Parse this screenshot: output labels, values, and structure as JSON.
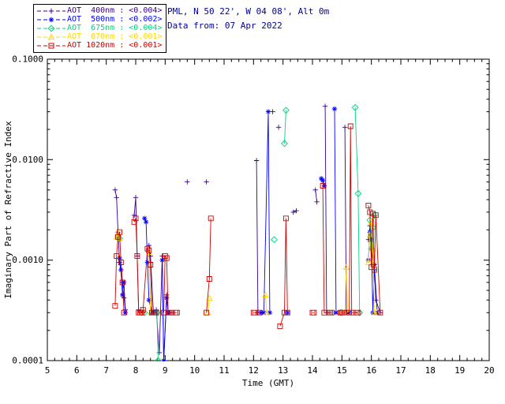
{
  "header": {
    "location_line": "PML, N 50 22', W 04 08', Alt 0m",
    "date_line": "Data from: 07 Apr 2022",
    "text_color": "#000099"
  },
  "legend": {
    "entries": [
      {
        "label": "AOT  400nm : <0.004>",
        "color": "#38008c",
        "marker": "plus"
      },
      {
        "label": "AOT  500nm : <0.002>",
        "color": "#0000ff",
        "marker": "asterisk"
      },
      {
        "label": "AOT  675nm : <0.004>",
        "color": "#00d67e",
        "marker": "diamond"
      },
      {
        "label": "AOT  870nm : <0.001>",
        "color": "#ffd800",
        "marker": "triangle"
      },
      {
        "label": "AOT 1020nm : <0.001>",
        "color": "#cc0000",
        "marker": "square"
      }
    ]
  },
  "chart_data": {
    "type": "line",
    "title": "",
    "xlabel": "Time (GMT)",
    "ylabel": "Imaginary Part of Refractive Index",
    "xlim": [
      5,
      20
    ],
    "ylim": [
      0.0001,
      0.1
    ],
    "yscale": "log",
    "grid": false,
    "legend_position": "top-left",
    "xticks": [
      5,
      6,
      7,
      8,
      9,
      10,
      11,
      12,
      13,
      14,
      15,
      16,
      17,
      18,
      19,
      20
    ],
    "yticks": [
      0.0001,
      0.001,
      0.01,
      0.1
    ],
    "ytick_labels": [
      "0.0001",
      "0.0010",
      "0.0100",
      "0.1000"
    ],
    "series": [
      {
        "name": "AOT 400nm",
        "wavelength_nm": 400,
        "color": "#38008c",
        "marker": "plus",
        "points": [
          [
            7.3,
            0.005
          ],
          [
            7.35,
            0.0042
          ],
          [
            7.4,
            0.0019
          ],
          [
            7.45,
            0.00095
          ],
          [
            7.55,
            0.0006
          ],
          [
            7.6,
            0.00042
          ],
          [
            7.65,
            0.00032
          ],
          [
            7.95,
            0.0028
          ],
          [
            8.0,
            0.0042
          ],
          [
            8.05,
            0.0011
          ],
          [
            8.1,
            0.00032
          ],
          [
            8.25,
            0.0003
          ],
          [
            8.45,
            0.0014
          ],
          [
            8.5,
            0.0011
          ],
          [
            8.6,
            0.0003
          ],
          [
            8.7,
            0.00032
          ],
          [
            8.8,
            0.00012
          ],
          [
            8.9,
            0.0011
          ],
          [
            8.95,
            0.0001
          ],
          [
            9.05,
            0.00045
          ],
          [
            9.1,
            0.0003
          ],
          [
            9.15,
            0.0003
          ],
          [
            9.75,
            0.006
          ],
          [
            10.4,
            0.006
          ],
          [
            12.1,
            0.0098
          ],
          [
            12.15,
            0.0003
          ],
          [
            12.3,
            0.0003
          ],
          [
            12.65,
            0.03
          ],
          [
            12.85,
            0.021
          ],
          [
            13.35,
            0.003
          ],
          [
            13.45,
            0.0031
          ],
          [
            14.1,
            0.005
          ],
          [
            14.15,
            0.0038
          ],
          [
            14.43,
            0.034
          ],
          [
            14.48,
            0.0003
          ],
          [
            15.1,
            0.021
          ],
          [
            15.15,
            0.0003
          ],
          [
            15.9,
            0.0016
          ],
          [
            15.95,
            0.0022
          ],
          [
            16.0,
            0.0013
          ],
          [
            16.1,
            0.0008
          ],
          [
            16.15,
            0.0004
          ],
          [
            16.3,
            0.0003
          ]
        ]
      },
      {
        "name": "AOT 500nm",
        "wavelength_nm": 500,
        "color": "#0000ff",
        "marker": "asterisk",
        "points": [
          [
            7.45,
            0.00105
          ],
          [
            7.5,
            0.0008
          ],
          [
            7.55,
            0.00045
          ],
          [
            7.6,
            0.0006
          ],
          [
            7.65,
            0.0003
          ],
          [
            8.3,
            0.0026
          ],
          [
            8.35,
            0.0024
          ],
          [
            8.4,
            0.00095
          ],
          [
            8.45,
            0.0004
          ],
          [
            8.55,
            0.0003
          ],
          [
            8.9,
            0.001
          ],
          [
            8.95,
            0.0001
          ],
          [
            9.05,
            0.00042
          ],
          [
            9.1,
            0.0003
          ],
          [
            12.25,
            0.0003
          ],
          [
            12.35,
            0.0003
          ],
          [
            12.5,
            0.03
          ],
          [
            12.55,
            0.0003
          ],
          [
            13.15,
            0.0003
          ],
          [
            14.3,
            0.0065
          ],
          [
            14.35,
            0.0062
          ],
          [
            14.4,
            0.0055
          ],
          [
            14.75,
            0.032
          ],
          [
            14.8,
            0.0003
          ],
          [
            15.2,
            0.0003
          ],
          [
            15.25,
            0.0003
          ],
          [
            15.9,
            0.001
          ],
          [
            15.95,
            0.0019
          ],
          [
            16.0,
            0.0016
          ],
          [
            16.05,
            0.0003
          ],
          [
            16.1,
            0.0009
          ],
          [
            16.2,
            0.0003
          ]
        ]
      },
      {
        "name": "AOT 675nm",
        "wavelength_nm": 675,
        "color": "#00d67e",
        "marker": "diamond",
        "points": [
          [
            7.4,
            0.00175
          ],
          [
            7.45,
            0.00165
          ],
          [
            8.2,
            0.0003
          ],
          [
            8.3,
            0.0003
          ],
          [
            8.72,
            0.0003
          ],
          [
            8.76,
            0.0001
          ],
          [
            12.7,
            0.0016
          ],
          [
            13.05,
            0.0145
          ],
          [
            13.1,
            0.031
          ],
          [
            14.95,
            0.0003
          ],
          [
            15.0,
            0.0003
          ],
          [
            15.45,
            0.033
          ],
          [
            15.55,
            0.0046
          ],
          [
            15.6,
            0.0003
          ],
          [
            15.95,
            0.0025
          ],
          [
            16.0,
            0.0013
          ],
          [
            16.05,
            0.0021
          ],
          [
            16.1,
            0.0028
          ]
        ]
      },
      {
        "name": "AOT 870nm",
        "wavelength_nm": 870,
        "color": "#ffd800",
        "marker": "triangle",
        "points": [
          [
            7.35,
            0.0017
          ],
          [
            7.4,
            0.00185
          ],
          [
            7.45,
            0.00165
          ],
          [
            8.2,
            0.0003
          ],
          [
            8.45,
            0.0012
          ],
          [
            8.5,
            0.0003
          ],
          [
            10.45,
            0.0003
          ],
          [
            10.5,
            0.00042
          ],
          [
            12.4,
            0.00045
          ],
          [
            12.45,
            0.0003
          ],
          [
            15.1,
            0.0003
          ],
          [
            15.15,
            0.00085
          ],
          [
            15.2,
            0.0003
          ],
          [
            15.9,
            0.00095
          ],
          [
            15.95,
            0.0018
          ],
          [
            16.0,
            0.0024
          ],
          [
            16.05,
            0.0013
          ],
          [
            16.1,
            0.0003
          ],
          [
            16.2,
            0.0003
          ]
        ]
      },
      {
        "name": "AOT 1020nm",
        "wavelength_nm": 1020,
        "color": "#cc0000",
        "marker": "square",
        "points": [
          [
            7.3,
            0.00035
          ],
          [
            7.35,
            0.0011
          ],
          [
            7.4,
            0.0017
          ],
          [
            7.45,
            0.0019
          ],
          [
            7.5,
            0.00095
          ],
          [
            7.55,
            0.0006
          ],
          [
            7.6,
            0.0003
          ],
          [
            7.95,
            0.0024
          ],
          [
            8.0,
            0.0026
          ],
          [
            8.05,
            0.0011
          ],
          [
            8.1,
            0.0003
          ],
          [
            8.15,
            0.0003
          ],
          [
            8.2,
            0.0003
          ],
          [
            8.25,
            0.00032
          ],
          [
            8.4,
            0.0013
          ],
          [
            8.45,
            0.00125
          ],
          [
            8.5,
            0.0009
          ],
          [
            8.55,
            0.0003
          ],
          [
            8.6,
            0.0003
          ],
          [
            8.65,
            0.0003
          ],
          [
            8.7,
            0.0003
          ],
          [
            8.95,
            0.0003
          ],
          [
            9.0,
            0.0011
          ],
          [
            9.05,
            0.00105
          ],
          [
            9.1,
            0.0003
          ],
          [
            9.15,
            0.0003
          ],
          [
            9.2,
            0.0003
          ],
          [
            9.35,
            0.0003
          ],
          [
            9.4,
            0.0003
          ],
          [
            10.4,
            0.0003
          ],
          [
            10.5,
            0.00065
          ],
          [
            10.55,
            0.0026
          ],
          [
            12.0,
            0.0003
          ],
          [
            12.05,
            0.0003
          ],
          [
            12.2,
            0.0003
          ],
          [
            12.9,
            0.00022
          ],
          [
            13.05,
            0.0003
          ],
          [
            13.1,
            0.0026
          ],
          [
            13.15,
            0.0003
          ],
          [
            14.0,
            0.0003
          ],
          [
            14.05,
            0.0003
          ],
          [
            14.35,
            0.0055
          ],
          [
            14.4,
            0.0003
          ],
          [
            14.55,
            0.0003
          ],
          [
            14.6,
            0.0003
          ],
          [
            14.65,
            0.0003
          ],
          [
            14.95,
            0.0003
          ],
          [
            15.0,
            0.0003
          ],
          [
            15.05,
            0.0003
          ],
          [
            15.25,
            0.0003
          ],
          [
            15.29,
            0.0215
          ],
          [
            15.33,
            0.0003
          ],
          [
            15.5,
            0.0003
          ],
          [
            15.55,
            0.0003
          ],
          [
            15.9,
            0.0035
          ],
          [
            15.95,
            0.003
          ],
          [
            16.0,
            0.00085
          ],
          [
            16.05,
            0.0029
          ],
          [
            16.1,
            0.0008
          ],
          [
            16.15,
            0.0028
          ],
          [
            16.3,
            0.0003
          ]
        ]
      }
    ]
  }
}
